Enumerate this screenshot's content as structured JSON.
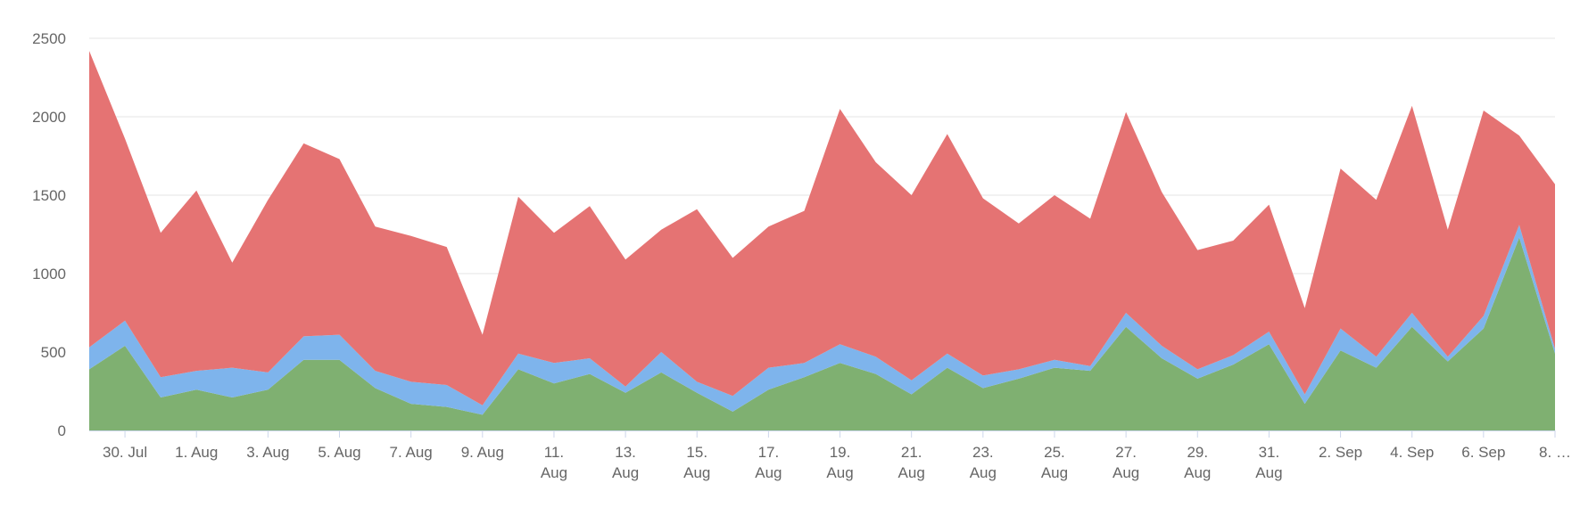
{
  "chart_data": {
    "type": "area",
    "stacked": true,
    "grid": "horizontal",
    "legend": "none",
    "title": "",
    "xlabel": "",
    "ylabel": "",
    "ylim": [
      0,
      2500
    ],
    "y_ticks": [
      0,
      500,
      1000,
      1500,
      2000,
      2500
    ],
    "x": [
      "29. Jul",
      "30. Jul",
      "31. Jul",
      "1. Aug",
      "2. Aug",
      "3. Aug",
      "4. Aug",
      "5. Aug",
      "6. Aug",
      "7. Aug",
      "8. Aug",
      "9. Aug",
      "10. Aug",
      "11. Aug",
      "12. Aug",
      "13. Aug",
      "14. Aug",
      "15. Aug",
      "16. Aug",
      "17. Aug",
      "18. Aug",
      "19. Aug",
      "20. Aug",
      "21. Aug",
      "22. Aug",
      "23. Aug",
      "24. Aug",
      "25. Aug",
      "26. Aug",
      "27. Aug",
      "28. Aug",
      "29. Aug",
      "30. Aug",
      "31. Aug",
      "1. Sep",
      "2. Sep",
      "3. Sep",
      "4. Sep",
      "5. Sep",
      "6. Sep",
      "7. Sep",
      "8. Sep"
    ],
    "x_tick_labels": [
      {
        "index": 1,
        "lines": [
          "30. Jul"
        ]
      },
      {
        "index": 3,
        "lines": [
          "1. Aug"
        ]
      },
      {
        "index": 5,
        "lines": [
          "3. Aug"
        ]
      },
      {
        "index": 7,
        "lines": [
          "5. Aug"
        ]
      },
      {
        "index": 9,
        "lines": [
          "7. Aug"
        ]
      },
      {
        "index": 11,
        "lines": [
          "9. Aug"
        ]
      },
      {
        "index": 13,
        "lines": [
          "11.",
          "Aug"
        ]
      },
      {
        "index": 15,
        "lines": [
          "13.",
          "Aug"
        ]
      },
      {
        "index": 17,
        "lines": [
          "15.",
          "Aug"
        ]
      },
      {
        "index": 19,
        "lines": [
          "17.",
          "Aug"
        ]
      },
      {
        "index": 21,
        "lines": [
          "19.",
          "Aug"
        ]
      },
      {
        "index": 23,
        "lines": [
          "21.",
          "Aug"
        ]
      },
      {
        "index": 25,
        "lines": [
          "23.",
          "Aug"
        ]
      },
      {
        "index": 27,
        "lines": [
          "25.",
          "Aug"
        ]
      },
      {
        "index": 29,
        "lines": [
          "27.",
          "Aug"
        ]
      },
      {
        "index": 31,
        "lines": [
          "29.",
          "Aug"
        ]
      },
      {
        "index": 33,
        "lines": [
          "31.",
          "Aug"
        ]
      },
      {
        "index": 35,
        "lines": [
          "2. Sep"
        ]
      },
      {
        "index": 37,
        "lines": [
          "4. Sep"
        ]
      },
      {
        "index": 39,
        "lines": [
          "6. Sep"
        ]
      },
      {
        "index": 41,
        "lines": [
          "8. …"
        ]
      }
    ],
    "series": [
      {
        "color": "#7fb071",
        "values": [
          390,
          540,
          210,
          260,
          210,
          260,
          450,
          450,
          270,
          170,
          150,
          100,
          390,
          300,
          360,
          240,
          370,
          240,
          120,
          260,
          340,
          430,
          360,
          230,
          400,
          270,
          330,
          400,
          380,
          660,
          460,
          330,
          420,
          550,
          170,
          510,
          400,
          660,
          440,
          650,
          1230,
          490
        ]
      },
      {
        "color": "#7eb4ec",
        "values": [
          140,
          160,
          130,
          120,
          190,
          110,
          150,
          160,
          110,
          140,
          140,
          60,
          100,
          130,
          100,
          40,
          130,
          70,
          100,
          140,
          90,
          120,
          110,
          90,
          90,
          80,
          60,
          50,
          30,
          90,
          80,
          60,
          60,
          80,
          60,
          140,
          70,
          90,
          30,
          80,
          80,
          30
        ]
      },
      {
        "color": "#e57373",
        "values": [
          1890,
          1160,
          920,
          1150,
          670,
          1100,
          1230,
          1120,
          920,
          930,
          880,
          450,
          1000,
          830,
          970,
          810,
          780,
          1100,
          880,
          900,
          970,
          1500,
          1240,
          1180,
          1400,
          1130,
          930,
          1050,
          940,
          1280,
          980,
          760,
          730,
          810,
          550,
          1020,
          1000,
          1320,
          810,
          1310,
          570,
          1050
        ]
      }
    ]
  }
}
